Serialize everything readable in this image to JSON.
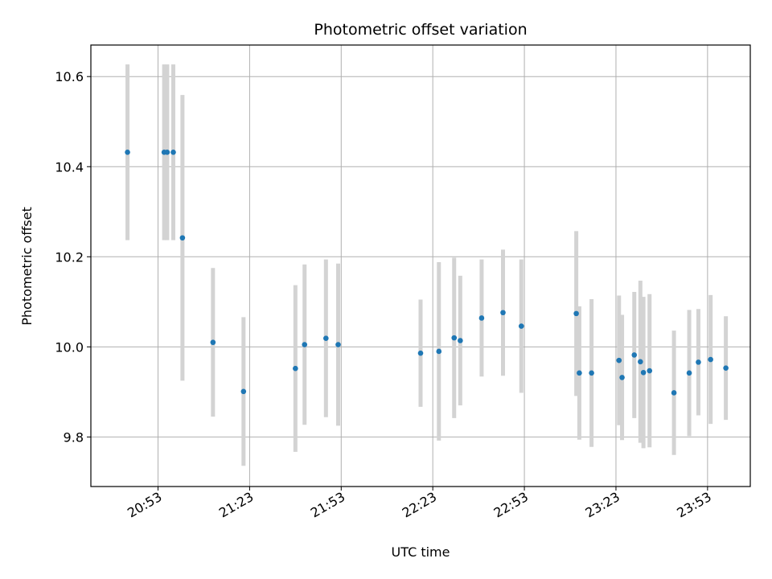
{
  "chart_data": {
    "type": "scatter",
    "title": "Photometric offset variation",
    "xlabel": "UTC time",
    "ylabel": "Photometric offset",
    "x_ticks": [
      "20:53",
      "21:23",
      "21:53",
      "22:23",
      "22:53",
      "23:23",
      "23:53"
    ],
    "y_ticks": [
      "9.8",
      "10.0",
      "10.2",
      "10.4",
      "10.6"
    ],
    "xlim": [
      "20:31",
      "00:07"
    ],
    "ylim": [
      9.69,
      10.67
    ],
    "grid": true,
    "colors": {
      "point": "#1f77b4",
      "errorbar": "#d3d3d3",
      "grid": "#b0b0b0"
    },
    "points": [
      {
        "t": "20:43",
        "y": 10.432,
        "err": 0.195
      },
      {
        "t": "20:55",
        "y": 10.432,
        "err": 0.195
      },
      {
        "t": "20:56",
        "y": 10.432,
        "err": 0.195
      },
      {
        "t": "20:58",
        "y": 10.432,
        "err": 0.195
      },
      {
        "t": "21:01",
        "y": 10.242,
        "err": 0.317
      },
      {
        "t": "21:11",
        "y": 10.01,
        "err": 0.165
      },
      {
        "t": "21:21",
        "y": 9.901,
        "err": 0.165
      },
      {
        "t": "21:38",
        "y": 9.952,
        "err": 0.185
      },
      {
        "t": "21:41",
        "y": 10.005,
        "err": 0.178
      },
      {
        "t": "21:48",
        "y": 10.019,
        "err": 0.175
      },
      {
        "t": "21:52",
        "y": 10.005,
        "err": 0.18
      },
      {
        "t": "22:19",
        "y": 9.986,
        "err": 0.119
      },
      {
        "t": "22:25",
        "y": 9.99,
        "err": 0.198
      },
      {
        "t": "22:30",
        "y": 10.02,
        "err": 0.178
      },
      {
        "t": "22:32",
        "y": 10.014,
        "err": 0.144
      },
      {
        "t": "22:39",
        "y": 10.064,
        "err": 0.13
      },
      {
        "t": "22:46",
        "y": 10.076,
        "err": 0.14
      },
      {
        "t": "22:52",
        "y": 10.046,
        "err": 0.148
      },
      {
        "t": "23:10",
        "y": 10.074,
        "err": 0.183
      },
      {
        "t": "23:11",
        "y": 9.942,
        "err": 0.148
      },
      {
        "t": "23:15",
        "y": 9.942,
        "err": 0.164
      },
      {
        "t": "23:24",
        "y": 9.97,
        "err": 0.144
      },
      {
        "t": "23:25",
        "y": 9.932,
        "err": 0.139
      },
      {
        "t": "23:29",
        "y": 9.982,
        "err": 0.14
      },
      {
        "t": "23:31",
        "y": 9.967,
        "err": 0.18
      },
      {
        "t": "23:32",
        "y": 9.943,
        "err": 0.168
      },
      {
        "t": "23:34",
        "y": 9.947,
        "err": 0.17
      },
      {
        "t": "23:42",
        "y": 9.898,
        "err": 0.138
      },
      {
        "t": "23:47",
        "y": 9.942,
        "err": 0.14
      },
      {
        "t": "23:50",
        "y": 9.966,
        "err": 0.118
      },
      {
        "t": "23:54",
        "y": 9.972,
        "err": 0.143
      },
      {
        "t": "23:59",
        "y": 9.953,
        "err": 0.115
      }
    ]
  }
}
